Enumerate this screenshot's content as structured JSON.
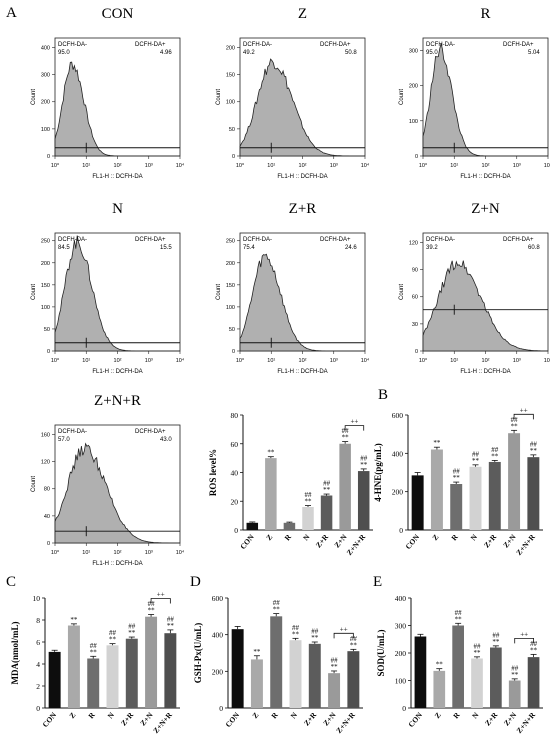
{
  "colors": {
    "hist_fill": "#b0b0b0",
    "black": "#111111",
    "bar_colors": [
      "#0d0d0d",
      "#a9a9a9",
      "#6e6e6e",
      "#d2d2d2",
      "#5c5c5c",
      "#9a9a9a",
      "#4f4f4f"
    ]
  },
  "panel_letters": [
    "A",
    "B",
    "C",
    "D",
    "E"
  ],
  "flow_common": {
    "neg_label": "DCFH-DA-",
    "pos_label": "DCFH-DA+",
    "xlabel": "FL1-H :: DCFH-DA",
    "ylabel": "Count",
    "xticks": [
      "10⁰",
      "10¹",
      "10²",
      "10³",
      "10⁴"
    ]
  },
  "flow_panels": [
    {
      "title": "CON",
      "neg": "95.0",
      "pos": "4.96",
      "yticks": [
        "0",
        "100",
        "200",
        "300",
        "400"
      ],
      "ymax": 400,
      "peak": 0.78,
      "center": 0.55,
      "width": 0.3,
      "gate_frac": 0.07
    },
    {
      "title": "Z",
      "neg": "49.2",
      "pos": "50.8",
      "yticks": [
        "0",
        "50",
        "100",
        "150",
        "200"
      ],
      "ymax": 200,
      "peak": 0.8,
      "center": 1.05,
      "width": 0.5,
      "gate_frac": 0.07
    },
    {
      "title": "R",
      "neg": "95.0",
      "pos": "5.04",
      "yticks": [
        "0",
        "100",
        "200",
        "300"
      ],
      "ymax": 300,
      "peak": 0.9,
      "center": 0.55,
      "width": 0.3,
      "gate_frac": 0.07
    },
    {
      "title": "N",
      "neg": "84.5",
      "pos": "15.5",
      "yticks": [
        "0",
        "50",
        "100",
        "150",
        "200",
        "250"
      ],
      "ymax": 250,
      "peak": 0.92,
      "center": 0.7,
      "width": 0.38,
      "gate_frac": 0.07
    },
    {
      "title": "Z+R",
      "neg": "75.4",
      "pos": "24.6",
      "yticks": [
        "0",
        "50",
        "100",
        "150",
        "200",
        "250"
      ],
      "ymax": 250,
      "peak": 0.8,
      "center": 0.8,
      "width": 0.4,
      "gate_frac": 0.07
    },
    {
      "title": "Z+N",
      "neg": "39.2",
      "pos": "60.8",
      "yticks": [
        "0",
        "30",
        "60",
        "90",
        "120"
      ],
      "ymax": 120,
      "peak": 0.75,
      "center": 1.1,
      "width": 0.6,
      "gate_frac": 0.35
    },
    {
      "title": "Z+N+R",
      "neg": "57.0",
      "pos": "43.0",
      "yticks": [
        "0",
        "40",
        "80",
        "120",
        "160"
      ],
      "ymax": 160,
      "peak": 0.8,
      "center": 0.95,
      "width": 0.55,
      "gate_frac": 0.1
    }
  ],
  "chart_data": [
    {
      "type": "bar",
      "ylabel": "ROS level%",
      "categories": [
        "CON",
        "Z",
        "R",
        "N",
        "Z+R",
        "Z+N",
        "Z+N+R"
      ],
      "values": [
        5,
        50,
        5,
        16,
        24,
        60,
        41
      ],
      "errors": [
        0.6,
        1.0,
        0.5,
        1.0,
        1.0,
        1.5,
        1.5
      ],
      "ylim": [
        0,
        80
      ],
      "yticks": [
        0,
        20,
        40,
        60,
        80
      ],
      "annotations": [
        "",
        "**",
        "",
        "##\n**",
        "##\n**",
        "##\n**",
        "##\n**"
      ],
      "bracket": {
        "from": 5,
        "to": 6,
        "label": "++"
      }
    },
    {
      "type": "bar",
      "ylabel": "4-HNE(pg/mL)",
      "categories": [
        "CON",
        "Z",
        "R",
        "N",
        "Z+R",
        "Z+N",
        "Z+N+R"
      ],
      "values": [
        285,
        420,
        240,
        330,
        355,
        505,
        380
      ],
      "errors": [
        15,
        12,
        10,
        10,
        8,
        15,
        12
      ],
      "ylim": [
        0,
        600
      ],
      "yticks": [
        0,
        200,
        400,
        600
      ],
      "annotations": [
        "",
        "**",
        "##\n**",
        "##\n**",
        "##\n**",
        "##\n**",
        "##\n**"
      ],
      "bracket": {
        "from": 5,
        "to": 6,
        "label": "++"
      }
    },
    {
      "type": "bar",
      "ylabel": "MDA(nmol/mL)",
      "categories": [
        "CON",
        "Z",
        "R",
        "N",
        "Z+R",
        "Z+N",
        "Z+N+R"
      ],
      "values": [
        5.1,
        7.5,
        4.5,
        5.7,
        6.3,
        8.3,
        6.8
      ],
      "errors": [
        0.15,
        0.15,
        0.2,
        0.15,
        0.15,
        0.2,
        0.3
      ],
      "ylim": [
        0,
        10
      ],
      "yticks": [
        0,
        2,
        4,
        6,
        8,
        10
      ],
      "annotations": [
        "",
        "**",
        "##\n**",
        "##\n**",
        "##\n**",
        "##\n**",
        "##\n**"
      ],
      "bracket": {
        "from": 5,
        "to": 6,
        "label": "++"
      }
    },
    {
      "type": "bar",
      "ylabel": "GSH-Px(U/mL)",
      "categories": [
        "CON",
        "Z",
        "R",
        "N",
        "Z+R",
        "Z+N",
        "Z+N+R"
      ],
      "values": [
        430,
        265,
        500,
        370,
        350,
        190,
        310
      ],
      "errors": [
        15,
        20,
        15,
        10,
        10,
        12,
        10
      ],
      "ylim": [
        0,
        600
      ],
      "yticks": [
        0,
        200,
        400,
        600
      ],
      "annotations": [
        "",
        "**",
        "##\n**",
        "##\n**",
        "##\n**",
        "##\n**",
        "##\n**"
      ],
      "bracket": {
        "from": 5,
        "to": 6,
        "label": "++"
      }
    },
    {
      "type": "bar",
      "ylabel": "SOD(U/mL)",
      "categories": [
        "CON",
        "Z",
        "R",
        "N",
        "Z+R",
        "Z+N",
        "Z+N+R"
      ],
      "values": [
        260,
        135,
        300,
        180,
        220,
        100,
        185
      ],
      "errors": [
        8,
        8,
        8,
        6,
        6,
        6,
        10
      ],
      "ylim": [
        0,
        400
      ],
      "yticks": [
        0,
        100,
        200,
        300,
        400
      ],
      "annotations": [
        "",
        "**",
        "##\n**",
        "##\n**",
        "##\n**",
        "##\n**",
        "##\n**"
      ],
      "bracket": {
        "from": 5,
        "to": 6,
        "label": "++"
      }
    }
  ]
}
